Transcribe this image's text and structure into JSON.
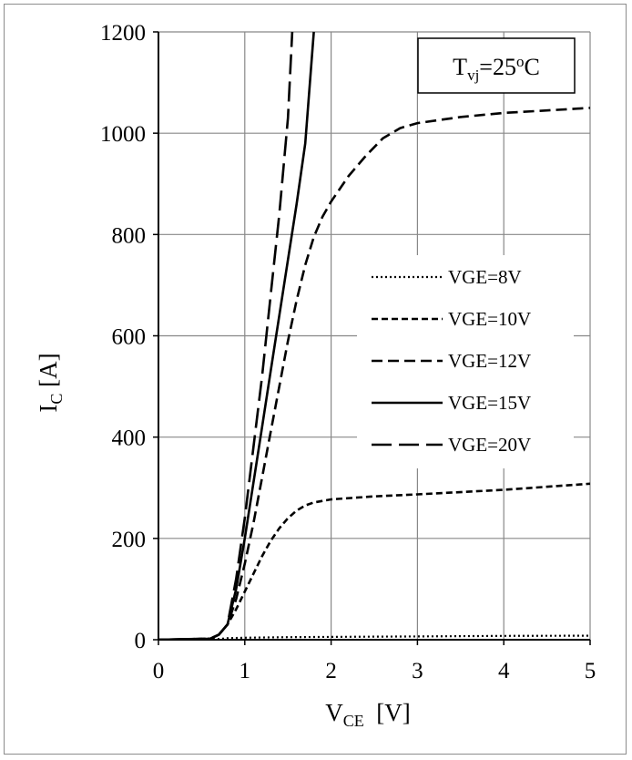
{
  "chart_data": {
    "type": "line",
    "title": "",
    "xlabel": {
      "main": "V",
      "sub": "CE",
      "unit": "  [V]"
    },
    "ylabel": {
      "main": "I",
      "sub": "C",
      "unit": " [A]"
    },
    "xlim": [
      0,
      5
    ],
    "ylim": [
      0,
      1200
    ],
    "x_ticks": [
      0,
      1,
      2,
      3,
      4,
      5
    ],
    "y_ticks": [
      0,
      200,
      400,
      600,
      800,
      1000,
      1200
    ],
    "grid": true,
    "legend_position": "center-right",
    "annotation": {
      "main": "T",
      "sub": "vj",
      "eq": "=25",
      "sup": "o",
      "unit": "C"
    },
    "series": [
      {
        "name": "VGE=8V",
        "dash": "dotted",
        "x": [
          0,
          0.6,
          0.7,
          0.8,
          1.0,
          1.5,
          2,
          3,
          4,
          5
        ],
        "y": [
          0,
          0.5,
          1.5,
          3,
          4,
          5,
          5.5,
          6.5,
          7.5,
          8
        ]
      },
      {
        "name": "VGE=10V",
        "dash": "dashed",
        "x": [
          0,
          0.6,
          0.7,
          0.8,
          0.9,
          1.0,
          1.1,
          1.2,
          1.3,
          1.4,
          1.5,
          1.6,
          1.7,
          1.8,
          2.0,
          2.5,
          3,
          4,
          5
        ],
        "y": [
          0,
          2,
          10,
          30,
          60,
          95,
          130,
          165,
          195,
          220,
          240,
          255,
          265,
          271,
          277,
          283,
          287,
          296,
          308
        ]
      },
      {
        "name": "VGE=12V",
        "dash": "longdash",
        "x": [
          0,
          0.6,
          0.7,
          0.8,
          0.9,
          1.0,
          1.1,
          1.2,
          1.3,
          1.4,
          1.5,
          1.6,
          1.7,
          1.8,
          1.9,
          2.0,
          2.2,
          2.4,
          2.6,
          2.8,
          3.0,
          3.5,
          4,
          4.5,
          5
        ],
        "y": [
          0,
          2,
          10,
          30,
          80,
          150,
          230,
          320,
          410,
          500,
          590,
          670,
          740,
          795,
          835,
          865,
          915,
          955,
          990,
          1010,
          1020,
          1032,
          1040,
          1045,
          1050
        ]
      },
      {
        "name": "VGE=15V",
        "dash": "solid",
        "x": [
          0,
          0.6,
          0.7,
          0.8,
          0.9,
          1.0,
          1.1,
          1.2,
          1.3,
          1.4,
          1.5,
          1.6,
          1.7,
          1.8
        ],
        "y": [
          0,
          2,
          10,
          30,
          100,
          200,
          310,
          420,
          530,
          640,
          750,
          860,
          980,
          1200
        ]
      },
      {
        "name": "VGE=20V",
        "dash": "xlongdash",
        "x": [
          0,
          0.6,
          0.7,
          0.8,
          0.9,
          1.0,
          1.1,
          1.2,
          1.3,
          1.4,
          1.5,
          1.55
        ],
        "y": [
          0,
          2,
          10,
          30,
          120,
          240,
          380,
          520,
          680,
          840,
          1030,
          1200
        ]
      }
    ]
  }
}
